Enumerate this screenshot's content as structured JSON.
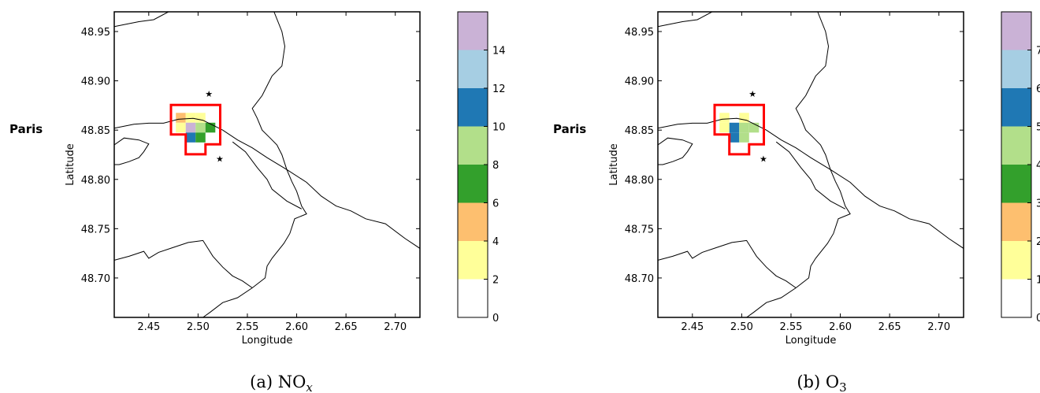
{
  "panels": [
    {
      "id": "nox",
      "side_label": "Paris",
      "caption_prefix": "(a) NO",
      "caption_sub": "x",
      "x_label": "Longitude",
      "y_label": "Latitude",
      "x_range": [
        2.415,
        2.725
      ],
      "y_range": [
        48.66,
        48.97
      ],
      "x_ticks": [
        "2.45",
        "2.50",
        "2.55",
        "2.60",
        "2.65",
        "2.70"
      ],
      "y_ticks": [
        "48.70",
        "48.75",
        "48.80",
        "48.85",
        "48.90",
        "48.95"
      ],
      "colorbar": {
        "colors": [
          "#ffffff",
          "#ffff99",
          "#fdbf6f",
          "#33a02c",
          "#b2df8a",
          "#1f78b4",
          "#a6cee3",
          "#cab2d6"
        ],
        "tick_labels": [
          "0",
          "2",
          "4",
          "6",
          "8",
          "10",
          "12",
          "14"
        ],
        "bins": 8
      },
      "cells": [
        {
          "lon": 2.4825,
          "lat": 48.8625,
          "cls": 2
        },
        {
          "lon": 2.4925,
          "lat": 48.8625,
          "cls": 1
        },
        {
          "lon": 2.5025,
          "lat": 48.8625,
          "cls": 1
        },
        {
          "lon": 2.4825,
          "lat": 48.8525,
          "cls": 1
        },
        {
          "lon": 2.4925,
          "lat": 48.8525,
          "cls": 7
        },
        {
          "lon": 2.5025,
          "lat": 48.8525,
          "cls": 4
        },
        {
          "lon": 2.5125,
          "lat": 48.8525,
          "cls": 3
        },
        {
          "lon": 2.4925,
          "lat": 48.8425,
          "cls": 5
        },
        {
          "lon": 2.5025,
          "lat": 48.8425,
          "cls": 3
        }
      ]
    },
    {
      "id": "o3",
      "side_label": "Paris",
      "caption_prefix": "(b) O",
      "caption_sub": "3",
      "x_label": "Longitude",
      "y_label": "Latitude",
      "x_range": [
        2.415,
        2.725
      ],
      "y_range": [
        48.66,
        48.97
      ],
      "x_ticks": [
        "2.45",
        "2.50",
        "2.55",
        "2.60",
        "2.65",
        "2.70"
      ],
      "y_ticks": [
        "48.70",
        "48.75",
        "48.80",
        "48.85",
        "48.90",
        "48.95"
      ],
      "colorbar": {
        "colors": [
          "#ffffff",
          "#ffff99",
          "#fdbf6f",
          "#33a02c",
          "#b2df8a",
          "#1f78b4",
          "#a6cee3",
          "#cab2d6"
        ],
        "tick_labels": [
          "0",
          "1",
          "2",
          "3",
          "4",
          "5",
          "6",
          "7"
        ],
        "bins": 8
      },
      "cells": [
        {
          "lon": 2.4825,
          "lat": 48.8625,
          "cls": 1
        },
        {
          "lon": 2.5025,
          "lat": 48.8625,
          "cls": 1
        },
        {
          "lon": 2.4825,
          "lat": 48.8525,
          "cls": 1
        },
        {
          "lon": 2.4925,
          "lat": 48.8525,
          "cls": 5
        },
        {
          "lon": 2.5025,
          "lat": 48.8525,
          "cls": 4
        },
        {
          "lon": 2.5125,
          "lat": 48.8525,
          "cls": 4
        },
        {
          "lon": 2.4925,
          "lat": 48.8425,
          "cls": 5
        },
        {
          "lon": 2.5025,
          "lat": 48.8425,
          "cls": 4
        }
      ]
    }
  ],
  "stations": [
    {
      "lon": 2.511,
      "lat": 48.887
    },
    {
      "lon": 2.522,
      "lat": 48.821
    }
  ],
  "boundary_color": "#ff0000",
  "boundary": [
    [
      2.4725,
      48.8755
    ],
    [
      2.5225,
      48.8755
    ],
    [
      2.5225,
      48.8355
    ],
    [
      2.5075,
      48.8355
    ],
    [
      2.5075,
      48.8255
    ],
    [
      2.4875,
      48.8255
    ],
    [
      2.4875,
      48.8455
    ],
    [
      2.4725,
      48.8455
    ]
  ],
  "map_lines": [
    [
      [
        2.415,
        48.852
      ],
      [
        2.435,
        48.856
      ],
      [
        2.45,
        48.857
      ],
      [
        2.465,
        48.857
      ],
      [
        2.48,
        48.861
      ],
      [
        2.495,
        48.862
      ],
      [
        2.505,
        48.86
      ],
      [
        2.515,
        48.855
      ],
      [
        2.525,
        48.85
      ],
      [
        2.54,
        48.84
      ],
      [
        2.555,
        48.832
      ],
      [
        2.57,
        48.822
      ],
      [
        2.59,
        48.81
      ],
      [
        2.61,
        48.797
      ],
      [
        2.625,
        48.783
      ],
      [
        2.64,
        48.773
      ],
      [
        2.655,
        48.768
      ],
      [
        2.67,
        48.76
      ],
      [
        2.69,
        48.755
      ],
      [
        2.71,
        48.74
      ],
      [
        2.725,
        48.73
      ]
    ],
    [
      [
        2.47,
        48.97
      ],
      [
        2.455,
        48.962
      ],
      [
        2.44,
        48.96
      ],
      [
        2.425,
        48.957
      ],
      [
        2.415,
        48.955
      ]
    ],
    [
      [
        2.577,
        48.97
      ],
      [
        2.585,
        48.95
      ],
      [
        2.588,
        48.935
      ],
      [
        2.585,
        48.915
      ],
      [
        2.575,
        48.905
      ],
      [
        2.57,
        48.895
      ],
      [
        2.565,
        48.885
      ],
      [
        2.555,
        48.872
      ],
      [
        2.56,
        48.862
      ],
      [
        2.565,
        48.85
      ],
      [
        2.573,
        48.842
      ],
      [
        2.58,
        48.835
      ],
      [
        2.585,
        48.825
      ],
      [
        2.59,
        48.81
      ],
      [
        2.595,
        48.798
      ],
      [
        2.6,
        48.788
      ],
      [
        2.605,
        48.773
      ],
      [
        2.61,
        48.765
      ],
      [
        2.598,
        48.76
      ],
      [
        2.593,
        48.745
      ],
      [
        2.587,
        48.735
      ],
      [
        2.575,
        48.72
      ],
      [
        2.57,
        48.712
      ],
      [
        2.568,
        48.7
      ],
      [
        2.555,
        48.69
      ],
      [
        2.54,
        48.68
      ],
      [
        2.525,
        48.675
      ],
      [
        2.512,
        48.665
      ],
      [
        2.505,
        48.66
      ]
    ],
    [
      [
        2.415,
        48.718
      ],
      [
        2.43,
        48.722
      ],
      [
        2.445,
        48.727
      ],
      [
        2.45,
        48.72
      ],
      [
        2.46,
        48.726
      ],
      [
        2.475,
        48.731
      ],
      [
        2.49,
        48.736
      ],
      [
        2.505,
        48.738
      ],
      [
        2.51,
        48.73
      ],
      [
        2.515,
        48.722
      ],
      [
        2.525,
        48.711
      ],
      [
        2.535,
        48.702
      ],
      [
        2.545,
        48.697
      ],
      [
        2.555,
        48.69
      ]
    ],
    [
      [
        2.415,
        48.835
      ],
      [
        2.425,
        48.842
      ],
      [
        2.44,
        48.84
      ],
      [
        2.45,
        48.836
      ],
      [
        2.445,
        48.828
      ],
      [
        2.44,
        48.822
      ],
      [
        2.43,
        48.818
      ],
      [
        2.42,
        48.815
      ],
      [
        2.415,
        48.815
      ]
    ],
    [
      [
        2.535,
        48.838
      ],
      [
        2.548,
        48.828
      ],
      [
        2.56,
        48.812
      ],
      [
        2.57,
        48.8
      ],
      [
        2.575,
        48.79
      ],
      [
        2.59,
        48.778
      ],
      [
        2.605,
        48.77
      ]
    ]
  ]
}
